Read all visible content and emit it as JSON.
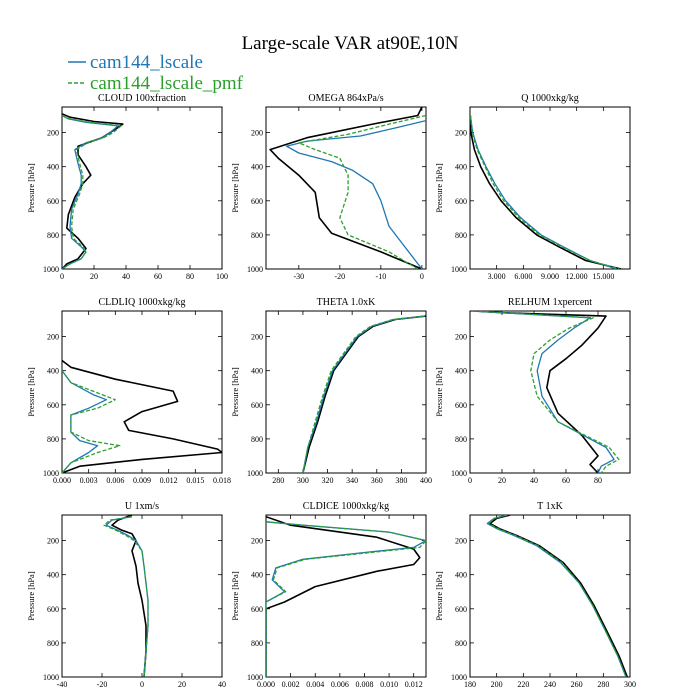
{
  "title": "Large-scale VAR at90E,10N",
  "legend": [
    {
      "name": "cam144_lscale",
      "color": "#1f77b4",
      "dash": "solid"
    },
    {
      "name": "cam144_lscale_pmf",
      "color": "#2ca02c",
      "dash": "dashed"
    }
  ],
  "obs_color": "#000000",
  "ylabel": "Pressure [hPa]",
  "chart_data": [
    {
      "type": "line",
      "title": "CLOUD  100xfraction",
      "xlim": [
        0,
        100
      ],
      "ylim": [
        1000,
        50
      ],
      "xticks": [
        0,
        20,
        40,
        60,
        80,
        100
      ],
      "xtick_labels": [
        "0",
        "20",
        "40",
        "60",
        "80",
        "100"
      ],
      "yticks": [
        200,
        400,
        600,
        800,
        1000
      ],
      "ylabel": "Pressure [hPa]",
      "series": [
        {
          "name": "obs",
          "x": [
            0,
            5,
            20,
            38,
            35,
            30,
            25,
            10,
            10,
            15,
            18,
            13,
            8,
            4,
            3,
            10,
            15,
            10,
            3,
            0
          ],
          "y": [
            90,
            110,
            135,
            150,
            170,
            200,
            230,
            280,
            330,
            400,
            450,
            500,
            580,
            680,
            760,
            820,
            880,
            940,
            970,
            1000
          ]
        },
        {
          "name": "cam144_lscale",
          "x": [
            0,
            4,
            15,
            35,
            30,
            25,
            15,
            8,
            10,
            12,
            12,
            10,
            6,
            5,
            6,
            12,
            15,
            12,
            5,
            0
          ],
          "y": [
            100,
            120,
            140,
            160,
            200,
            230,
            260,
            300,
            380,
            450,
            500,
            560,
            650,
            750,
            820,
            870,
            900,
            940,
            970,
            1000
          ]
        },
        {
          "name": "cam144_lscale_pmf",
          "x": [
            0,
            5,
            17,
            37,
            32,
            26,
            16,
            9,
            11,
            13,
            13,
            11,
            7,
            6,
            7,
            13,
            15,
            12,
            5,
            0
          ],
          "y": [
            100,
            120,
            140,
            160,
            200,
            230,
            260,
            300,
            380,
            450,
            500,
            560,
            650,
            750,
            820,
            870,
            900,
            940,
            970,
            1000
          ]
        }
      ]
    },
    {
      "type": "line",
      "title": "OMEGA  864xPa/s",
      "xlim": [
        -38,
        1
      ],
      "ylim": [
        1000,
        50
      ],
      "xticks": [
        -30,
        -20,
        -10,
        0
      ],
      "xtick_labels": [
        "-30",
        "-20",
        "-10",
        "0"
      ],
      "yticks": [
        200,
        400,
        600,
        800,
        1000
      ],
      "ylabel": "Pressure [hPa]",
      "series": [
        {
          "name": "obs",
          "x": [
            0,
            -1,
            -12,
            -28,
            -37,
            -35,
            -30,
            -26,
            -25,
            -22,
            -10,
            0
          ],
          "y": [
            50,
            100,
            150,
            230,
            300,
            350,
            450,
            550,
            700,
            790,
            900,
            1000
          ]
        },
        {
          "name": "cam144_lscale",
          "x": [
            1,
            -6,
            -15,
            -28,
            -33,
            -30,
            -22,
            -17,
            -12,
            -10,
            -8,
            0
          ],
          "y": [
            130,
            170,
            220,
            250,
            280,
            320,
            370,
            420,
            500,
            600,
            750,
            1000
          ]
        },
        {
          "name": "cam144_lscale_pmf",
          "x": [
            1,
            -8,
            -18,
            -30,
            -26,
            -20,
            -18,
            -18,
            -20,
            -18,
            -8,
            -1
          ],
          "y": [
            100,
            150,
            210,
            260,
            300,
            350,
            450,
            550,
            700,
            800,
            900,
            1000
          ]
        }
      ]
    },
    {
      "type": "line",
      "title": "Q  1000xkg/kg",
      "xlim": [
        0,
        18
      ],
      "ylim": [
        1000,
        50
      ],
      "xticks": [
        3,
        6,
        9,
        12,
        15
      ],
      "xtick_labels": [
        "3.000",
        "6.000",
        "9.000",
        "12.000",
        "15.000"
      ],
      "yticks": [
        200,
        400,
        600,
        800,
        1000
      ],
      "ylabel": "Pressure [hPa]",
      "series": [
        {
          "name": "obs",
          "x": [
            0.05,
            0.1,
            0.5,
            1.2,
            2.2,
            3.5,
            5.2,
            7.5,
            10,
            13,
            17
          ],
          "y": [
            100,
            200,
            300,
            400,
            500,
            600,
            700,
            800,
            870,
            950,
            1000
          ]
        },
        {
          "name": "cam144_lscale",
          "x": [
            0.05,
            0.3,
            0.9,
            1.8,
            2.8,
            4.0,
            5.7,
            8.0,
            10.5,
            13.5,
            16.5
          ],
          "y": [
            100,
            200,
            300,
            400,
            500,
            600,
            700,
            800,
            870,
            950,
            1000
          ]
        },
        {
          "name": "cam144_lscale_pmf",
          "x": [
            0.05,
            0.25,
            0.8,
            1.7,
            2.6,
            3.8,
            5.5,
            7.8,
            10.3,
            13.5,
            16.8
          ],
          "y": [
            100,
            200,
            300,
            400,
            500,
            600,
            700,
            800,
            870,
            950,
            1000
          ]
        }
      ]
    },
    {
      "type": "line",
      "title": "CLDLIQ  1000xkg/kg",
      "xlim": [
        0,
        0.018
      ],
      "ylim": [
        1000,
        50
      ],
      "xticks": [
        0,
        0.003,
        0.006,
        0.009,
        0.012,
        0.015,
        0.018
      ],
      "xtick_labels": [
        "0.000",
        "0.003",
        "0.006",
        "0.009",
        "0.012",
        "0.015",
        "0.018"
      ],
      "yticks": [
        200,
        400,
        600,
        800,
        1000
      ],
      "ylabel": "Pressure [hPa]",
      "series": [
        {
          "name": "obs",
          "x": [
            0,
            0.001,
            0.006,
            0.0125,
            0.013,
            0.009,
            0.007,
            0.0075,
            0.0125,
            0.0175,
            0.018,
            0.009,
            0.002,
            0
          ],
          "y": [
            340,
            380,
            450,
            520,
            580,
            640,
            700,
            750,
            800,
            860,
            880,
            920,
            960,
            1000
          ]
        },
        {
          "name": "cam144_lscale",
          "x": [
            0,
            0.001,
            0.0035,
            0.005,
            0.003,
            0.001,
            0.001,
            0.002,
            0.004,
            0.003,
            0.001,
            0
          ],
          "y": [
            400,
            470,
            540,
            570,
            620,
            660,
            760,
            810,
            840,
            880,
            940,
            1000
          ]
        },
        {
          "name": "cam144_lscale_pmf",
          "x": [
            0,
            0.001,
            0.0045,
            0.006,
            0.004,
            0.001,
            0.001,
            0.003,
            0.0065,
            0.004,
            0.001,
            0
          ],
          "y": [
            400,
            470,
            540,
            570,
            620,
            660,
            760,
            810,
            840,
            880,
            940,
            1000
          ]
        }
      ]
    },
    {
      "type": "line",
      "title": "THETA  1.0xK",
      "xlim": [
        270,
        400
      ],
      "ylim": [
        1000,
        50
      ],
      "xticks": [
        280,
        300,
        320,
        340,
        360,
        380,
        400
      ],
      "xtick_labels": [
        "280",
        "300",
        "320",
        "340",
        "360",
        "380",
        "400"
      ],
      "yticks": [
        200,
        400,
        600,
        800,
        1000
      ],
      "ylabel": "Pressure [hPa]",
      "series": [
        {
          "name": "obs",
          "x": [
            300,
            305,
            312,
            318,
            325,
            335,
            345,
            357,
            375,
            400
          ],
          "y": [
            1000,
            850,
            700,
            550,
            400,
            300,
            200,
            140,
            100,
            80
          ]
        },
        {
          "name": "cam144_lscale",
          "x": [
            300,
            304,
            311,
            317,
            324,
            334,
            344,
            356,
            374,
            399
          ],
          "y": [
            1000,
            850,
            700,
            550,
            400,
            300,
            200,
            140,
            100,
            80
          ]
        },
        {
          "name": "cam144_lscale_pmf",
          "x": [
            300,
            304,
            310,
            316,
            323,
            333,
            343,
            355,
            373,
            398
          ],
          "y": [
            1000,
            850,
            700,
            550,
            400,
            300,
            200,
            140,
            100,
            80
          ]
        }
      ]
    },
    {
      "type": "line",
      "title": "RELHUM  1xpercent",
      "xlim": [
        0,
        100
      ],
      "ylim": [
        1000,
        50
      ],
      "xticks": [
        0,
        20,
        40,
        60,
        80
      ],
      "xtick_labels": [
        "0",
        "20",
        "40",
        "60",
        "80"
      ],
      "yticks": [
        200,
        400,
        600,
        800,
        1000
      ],
      "ylabel": "Pressure [hPa]",
      "series": [
        {
          "name": "obs",
          "x": [
            2,
            20,
            85,
            80,
            70,
            60,
            50,
            48,
            55,
            70,
            80,
            75,
            80
          ],
          "y": [
            50,
            60,
            80,
            150,
            250,
            330,
            400,
            500,
            650,
            780,
            900,
            950,
            1000
          ]
        },
        {
          "name": "cam144_lscale",
          "x": [
            2,
            20,
            75,
            65,
            55,
            45,
            42,
            45,
            55,
            85,
            90,
            82,
            80
          ],
          "y": [
            50,
            60,
            90,
            150,
            220,
            300,
            400,
            550,
            700,
            850,
            920,
            960,
            1000
          ]
        },
        {
          "name": "cam144_lscale_pmf",
          "x": [
            2,
            20,
            77,
            62,
            50,
            40,
            38,
            42,
            55,
            87,
            93,
            85,
            82
          ],
          "y": [
            50,
            60,
            90,
            150,
            220,
            300,
            400,
            550,
            700,
            850,
            920,
            960,
            1000
          ]
        }
      ]
    },
    {
      "type": "line",
      "title": "U  1xm/s",
      "xlim": [
        -40,
        40
      ],
      "ylim": [
        1000,
        50
      ],
      "xticks": [
        -40,
        -20,
        0,
        20,
        40
      ],
      "xtick_labels": [
        "-40",
        "-20",
        "0",
        "20",
        "40"
      ],
      "yticks": [
        200,
        400,
        600,
        800,
        1000
      ],
      "ylabel": "Pressure [hPa]",
      "series": [
        {
          "name": "obs",
          "x": [
            -5,
            -12,
            -15,
            -10,
            -5,
            -3,
            -5,
            -3,
            -2,
            0,
            2,
            2,
            1
          ],
          "y": [
            50,
            80,
            110,
            140,
            160,
            200,
            260,
            350,
            450,
            550,
            700,
            850,
            1000
          ]
        },
        {
          "name": "cam144_lscale",
          "x": [
            -5,
            -15,
            -18,
            -12,
            -7,
            -3,
            0,
            1,
            2,
            3,
            3,
            2,
            1
          ],
          "y": [
            60,
            80,
            110,
            140,
            170,
            200,
            260,
            350,
            450,
            550,
            700,
            850,
            1000
          ]
        },
        {
          "name": "cam144_lscale_pmf",
          "x": [
            -5,
            -16,
            -19,
            -13,
            -8,
            -4,
            0,
            1,
            2,
            3,
            3,
            2,
            1
          ],
          "y": [
            60,
            80,
            110,
            140,
            170,
            200,
            260,
            350,
            450,
            550,
            700,
            850,
            1000
          ]
        }
      ]
    },
    {
      "type": "line",
      "title": "CLDICE  1000xkg/kg",
      "xlim": [
        0,
        0.013
      ],
      "ylim": [
        1000,
        50
      ],
      "xticks": [
        0,
        0.002,
        0.004,
        0.006,
        0.008,
        0.01,
        0.012
      ],
      "xtick_labels": [
        "0.000",
        "0.002",
        "0.004",
        "0.006",
        "0.008",
        "0.010",
        "0.012"
      ],
      "yticks": [
        200,
        400,
        600,
        800,
        1000
      ],
      "ylabel": "Pressure [hPa]",
      "series": [
        {
          "name": "obs",
          "x": [
            0,
            0.002,
            0.009,
            0.012,
            0.0125,
            0.012,
            0.009,
            0.004,
            0.0015,
            0,
            0
          ],
          "y": [
            60,
            110,
            180,
            250,
            300,
            340,
            380,
            470,
            560,
            600,
            1000
          ]
        },
        {
          "name": "cam144_lscale",
          "x": [
            0,
            0.003,
            0.01,
            0.013,
            0.012,
            0.008,
            0.003,
            0.0008,
            0.0005,
            0.0015,
            0,
            0
          ],
          "y": [
            90,
            110,
            150,
            200,
            240,
            270,
            310,
            360,
            430,
            500,
            560,
            1000
          ]
        },
        {
          "name": "cam144_lscale_pmf",
          "x": [
            0,
            0.003,
            0.01,
            0.013,
            0.0125,
            0.0085,
            0.0032,
            0.0009,
            0.0006,
            0.0016,
            0,
            0
          ],
          "y": [
            90,
            110,
            150,
            200,
            240,
            270,
            310,
            360,
            430,
            500,
            560,
            1000
          ]
        }
      ]
    },
    {
      "type": "line",
      "title": "T  1xK",
      "xlim": [
        180,
        300
      ],
      "ylim": [
        1000,
        50
      ],
      "xticks": [
        180,
        200,
        220,
        240,
        260,
        280,
        300
      ],
      "xtick_labels": [
        "180",
        "200",
        "220",
        "240",
        "260",
        "280",
        "300"
      ],
      "yticks": [
        200,
        400,
        600,
        800,
        1000
      ],
      "ylabel": "Pressure [hPa]",
      "series": [
        {
          "name": "obs",
          "x": [
            210,
            200,
            195,
            202,
            215,
            232,
            250,
            263,
            273,
            282,
            292,
            298
          ],
          "y": [
            50,
            70,
            100,
            130,
            170,
            230,
            330,
            450,
            580,
            720,
            880,
            1000
          ]
        },
        {
          "name": "cam144_lscale",
          "x": [
            208,
            198,
            193,
            200,
            213,
            230,
            248,
            262,
            272,
            281,
            291,
            297
          ],
          "y": [
            50,
            70,
            100,
            130,
            170,
            230,
            330,
            450,
            580,
            720,
            880,
            1000
          ]
        },
        {
          "name": "cam144_lscale_pmf",
          "x": [
            208,
            198,
            194,
            201,
            214,
            231,
            249,
            262,
            272,
            281,
            291,
            297
          ],
          "y": [
            50,
            70,
            100,
            130,
            170,
            230,
            330,
            450,
            580,
            720,
            880,
            1000
          ]
        }
      ]
    }
  ]
}
